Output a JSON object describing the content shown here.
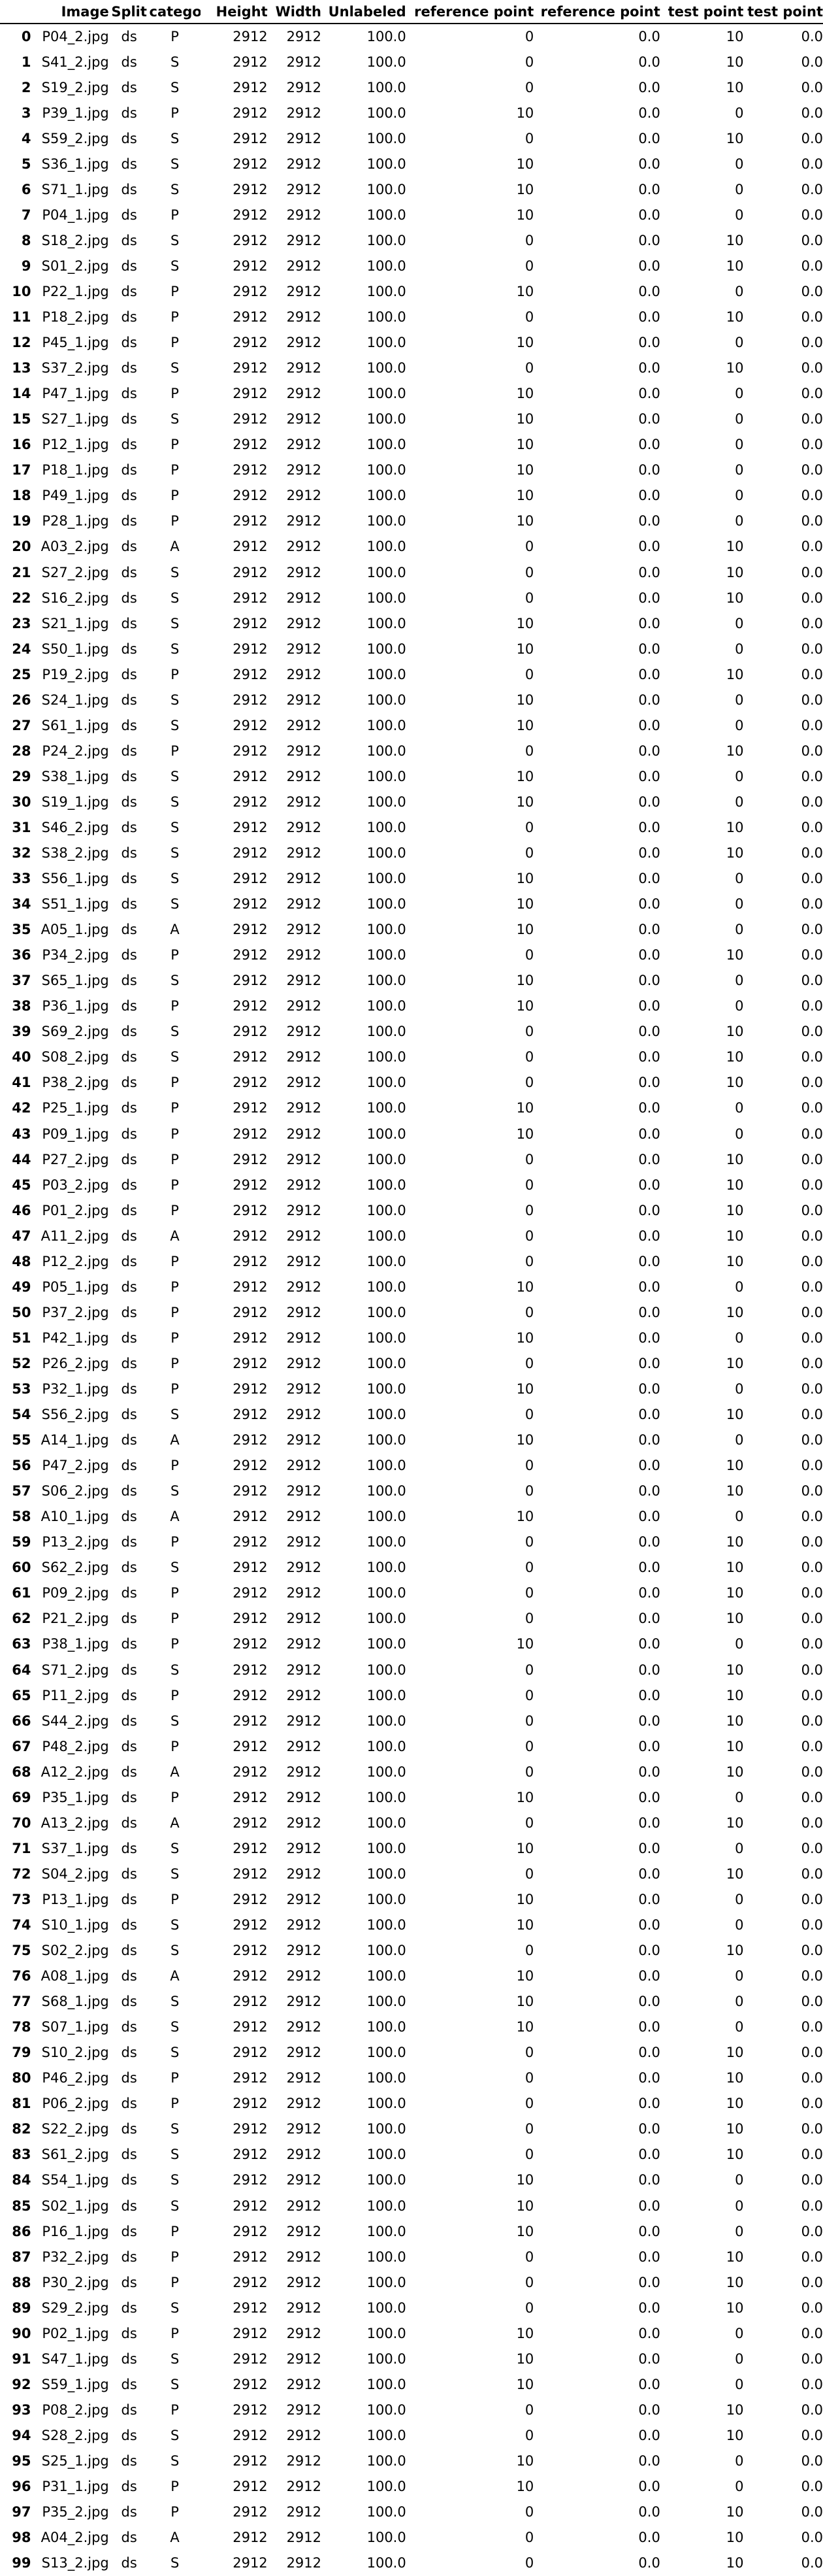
{
  "table": {
    "columns": [
      "",
      "Image",
      "Split",
      "category",
      "Height",
      "Width",
      "Unlabeled",
      "reference point",
      "reference point",
      "test point",
      "test point"
    ],
    "rows": [
      [
        "0",
        "P04_2.jpg",
        "ds",
        "P",
        "2912",
        "2912",
        "100.0",
        "0",
        "0.0",
        "10",
        "0.0"
      ],
      [
        "1",
        "S41_2.jpg",
        "ds",
        "S",
        "2912",
        "2912",
        "100.0",
        "0",
        "0.0",
        "10",
        "0.0"
      ],
      [
        "2",
        "S19_2.jpg",
        "ds",
        "S",
        "2912",
        "2912",
        "100.0",
        "0",
        "0.0",
        "10",
        "0.0"
      ],
      [
        "3",
        "P39_1.jpg",
        "ds",
        "P",
        "2912",
        "2912",
        "100.0",
        "10",
        "0.0",
        "0",
        "0.0"
      ],
      [
        "4",
        "S59_2.jpg",
        "ds",
        "S",
        "2912",
        "2912",
        "100.0",
        "0",
        "0.0",
        "10",
        "0.0"
      ],
      [
        "5",
        "S36_1.jpg",
        "ds",
        "S",
        "2912",
        "2912",
        "100.0",
        "10",
        "0.0",
        "0",
        "0.0"
      ],
      [
        "6",
        "S71_1.jpg",
        "ds",
        "S",
        "2912",
        "2912",
        "100.0",
        "10",
        "0.0",
        "0",
        "0.0"
      ],
      [
        "7",
        "P04_1.jpg",
        "ds",
        "P",
        "2912",
        "2912",
        "100.0",
        "10",
        "0.0",
        "0",
        "0.0"
      ],
      [
        "8",
        "S18_2.jpg",
        "ds",
        "S",
        "2912",
        "2912",
        "100.0",
        "0",
        "0.0",
        "10",
        "0.0"
      ],
      [
        "9",
        "S01_2.jpg",
        "ds",
        "S",
        "2912",
        "2912",
        "100.0",
        "0",
        "0.0",
        "10",
        "0.0"
      ],
      [
        "10",
        "P22_1.jpg",
        "ds",
        "P",
        "2912",
        "2912",
        "100.0",
        "10",
        "0.0",
        "0",
        "0.0"
      ],
      [
        "11",
        "P18_2.jpg",
        "ds",
        "P",
        "2912",
        "2912",
        "100.0",
        "0",
        "0.0",
        "10",
        "0.0"
      ],
      [
        "12",
        "P45_1.jpg",
        "ds",
        "P",
        "2912",
        "2912",
        "100.0",
        "10",
        "0.0",
        "0",
        "0.0"
      ],
      [
        "13",
        "S37_2.jpg",
        "ds",
        "S",
        "2912",
        "2912",
        "100.0",
        "0",
        "0.0",
        "10",
        "0.0"
      ],
      [
        "14",
        "P47_1.jpg",
        "ds",
        "P",
        "2912",
        "2912",
        "100.0",
        "10",
        "0.0",
        "0",
        "0.0"
      ],
      [
        "15",
        "S27_1.jpg",
        "ds",
        "S",
        "2912",
        "2912",
        "100.0",
        "10",
        "0.0",
        "0",
        "0.0"
      ],
      [
        "16",
        "P12_1.jpg",
        "ds",
        "P",
        "2912",
        "2912",
        "100.0",
        "10",
        "0.0",
        "0",
        "0.0"
      ],
      [
        "17",
        "P18_1.jpg",
        "ds",
        "P",
        "2912",
        "2912",
        "100.0",
        "10",
        "0.0",
        "0",
        "0.0"
      ],
      [
        "18",
        "P49_1.jpg",
        "ds",
        "P",
        "2912",
        "2912",
        "100.0",
        "10",
        "0.0",
        "0",
        "0.0"
      ],
      [
        "19",
        "P28_1.jpg",
        "ds",
        "P",
        "2912",
        "2912",
        "100.0",
        "10",
        "0.0",
        "0",
        "0.0"
      ],
      [
        "20",
        "A03_2.jpg",
        "ds",
        "A",
        "2912",
        "2912",
        "100.0",
        "0",
        "0.0",
        "10",
        "0.0"
      ],
      [
        "21",
        "S27_2.jpg",
        "ds",
        "S",
        "2912",
        "2912",
        "100.0",
        "0",
        "0.0",
        "10",
        "0.0"
      ],
      [
        "22",
        "S16_2.jpg",
        "ds",
        "S",
        "2912",
        "2912",
        "100.0",
        "0",
        "0.0",
        "10",
        "0.0"
      ],
      [
        "23",
        "S21_1.jpg",
        "ds",
        "S",
        "2912",
        "2912",
        "100.0",
        "10",
        "0.0",
        "0",
        "0.0"
      ],
      [
        "24",
        "S50_1.jpg",
        "ds",
        "S",
        "2912",
        "2912",
        "100.0",
        "10",
        "0.0",
        "0",
        "0.0"
      ],
      [
        "25",
        "P19_2.jpg",
        "ds",
        "P",
        "2912",
        "2912",
        "100.0",
        "0",
        "0.0",
        "10",
        "0.0"
      ],
      [
        "26",
        "S24_1.jpg",
        "ds",
        "S",
        "2912",
        "2912",
        "100.0",
        "10",
        "0.0",
        "0",
        "0.0"
      ],
      [
        "27",
        "S61_1.jpg",
        "ds",
        "S",
        "2912",
        "2912",
        "100.0",
        "10",
        "0.0",
        "0",
        "0.0"
      ],
      [
        "28",
        "P24_2.jpg",
        "ds",
        "P",
        "2912",
        "2912",
        "100.0",
        "0",
        "0.0",
        "10",
        "0.0"
      ],
      [
        "29",
        "S38_1.jpg",
        "ds",
        "S",
        "2912",
        "2912",
        "100.0",
        "10",
        "0.0",
        "0",
        "0.0"
      ],
      [
        "30",
        "S19_1.jpg",
        "ds",
        "S",
        "2912",
        "2912",
        "100.0",
        "10",
        "0.0",
        "0",
        "0.0"
      ],
      [
        "31",
        "S46_2.jpg",
        "ds",
        "S",
        "2912",
        "2912",
        "100.0",
        "0",
        "0.0",
        "10",
        "0.0"
      ],
      [
        "32",
        "S38_2.jpg",
        "ds",
        "S",
        "2912",
        "2912",
        "100.0",
        "0",
        "0.0",
        "10",
        "0.0"
      ],
      [
        "33",
        "S56_1.jpg",
        "ds",
        "S",
        "2912",
        "2912",
        "100.0",
        "10",
        "0.0",
        "0",
        "0.0"
      ],
      [
        "34",
        "S51_1.jpg",
        "ds",
        "S",
        "2912",
        "2912",
        "100.0",
        "10",
        "0.0",
        "0",
        "0.0"
      ],
      [
        "35",
        "A05_1.jpg",
        "ds",
        "A",
        "2912",
        "2912",
        "100.0",
        "10",
        "0.0",
        "0",
        "0.0"
      ],
      [
        "36",
        "P34_2.jpg",
        "ds",
        "P",
        "2912",
        "2912",
        "100.0",
        "0",
        "0.0",
        "10",
        "0.0"
      ],
      [
        "37",
        "S65_1.jpg",
        "ds",
        "S",
        "2912",
        "2912",
        "100.0",
        "10",
        "0.0",
        "0",
        "0.0"
      ],
      [
        "38",
        "P36_1.jpg",
        "ds",
        "P",
        "2912",
        "2912",
        "100.0",
        "10",
        "0.0",
        "0",
        "0.0"
      ],
      [
        "39",
        "S69_2.jpg",
        "ds",
        "S",
        "2912",
        "2912",
        "100.0",
        "0",
        "0.0",
        "10",
        "0.0"
      ],
      [
        "40",
        "S08_2.jpg",
        "ds",
        "S",
        "2912",
        "2912",
        "100.0",
        "0",
        "0.0",
        "10",
        "0.0"
      ],
      [
        "41",
        "P38_2.jpg",
        "ds",
        "P",
        "2912",
        "2912",
        "100.0",
        "0",
        "0.0",
        "10",
        "0.0"
      ],
      [
        "42",
        "P25_1.jpg",
        "ds",
        "P",
        "2912",
        "2912",
        "100.0",
        "10",
        "0.0",
        "0",
        "0.0"
      ],
      [
        "43",
        "P09_1.jpg",
        "ds",
        "P",
        "2912",
        "2912",
        "100.0",
        "10",
        "0.0",
        "0",
        "0.0"
      ],
      [
        "44",
        "P27_2.jpg",
        "ds",
        "P",
        "2912",
        "2912",
        "100.0",
        "0",
        "0.0",
        "10",
        "0.0"
      ],
      [
        "45",
        "P03_2.jpg",
        "ds",
        "P",
        "2912",
        "2912",
        "100.0",
        "0",
        "0.0",
        "10",
        "0.0"
      ],
      [
        "46",
        "P01_2.jpg",
        "ds",
        "P",
        "2912",
        "2912",
        "100.0",
        "0",
        "0.0",
        "10",
        "0.0"
      ],
      [
        "47",
        "A11_2.jpg",
        "ds",
        "A",
        "2912",
        "2912",
        "100.0",
        "0",
        "0.0",
        "10",
        "0.0"
      ],
      [
        "48",
        "P12_2.jpg",
        "ds",
        "P",
        "2912",
        "2912",
        "100.0",
        "0",
        "0.0",
        "10",
        "0.0"
      ],
      [
        "49",
        "P05_1.jpg",
        "ds",
        "P",
        "2912",
        "2912",
        "100.0",
        "10",
        "0.0",
        "0",
        "0.0"
      ],
      [
        "50",
        "P37_2.jpg",
        "ds",
        "P",
        "2912",
        "2912",
        "100.0",
        "0",
        "0.0",
        "10",
        "0.0"
      ],
      [
        "51",
        "P42_1.jpg",
        "ds",
        "P",
        "2912",
        "2912",
        "100.0",
        "10",
        "0.0",
        "0",
        "0.0"
      ],
      [
        "52",
        "P26_2.jpg",
        "ds",
        "P",
        "2912",
        "2912",
        "100.0",
        "0",
        "0.0",
        "10",
        "0.0"
      ],
      [
        "53",
        "P32_1.jpg",
        "ds",
        "P",
        "2912",
        "2912",
        "100.0",
        "10",
        "0.0",
        "0",
        "0.0"
      ],
      [
        "54",
        "S56_2.jpg",
        "ds",
        "S",
        "2912",
        "2912",
        "100.0",
        "0",
        "0.0",
        "10",
        "0.0"
      ],
      [
        "55",
        "A14_1.jpg",
        "ds",
        "A",
        "2912",
        "2912",
        "100.0",
        "10",
        "0.0",
        "0",
        "0.0"
      ],
      [
        "56",
        "P47_2.jpg",
        "ds",
        "P",
        "2912",
        "2912",
        "100.0",
        "0",
        "0.0",
        "10",
        "0.0"
      ],
      [
        "57",
        "S06_2.jpg",
        "ds",
        "S",
        "2912",
        "2912",
        "100.0",
        "0",
        "0.0",
        "10",
        "0.0"
      ],
      [
        "58",
        "A10_1.jpg",
        "ds",
        "A",
        "2912",
        "2912",
        "100.0",
        "10",
        "0.0",
        "0",
        "0.0"
      ],
      [
        "59",
        "P13_2.jpg",
        "ds",
        "P",
        "2912",
        "2912",
        "100.0",
        "0",
        "0.0",
        "10",
        "0.0"
      ],
      [
        "60",
        "S62_2.jpg",
        "ds",
        "S",
        "2912",
        "2912",
        "100.0",
        "0",
        "0.0",
        "10",
        "0.0"
      ],
      [
        "61",
        "P09_2.jpg",
        "ds",
        "P",
        "2912",
        "2912",
        "100.0",
        "0",
        "0.0",
        "10",
        "0.0"
      ],
      [
        "62",
        "P21_2.jpg",
        "ds",
        "P",
        "2912",
        "2912",
        "100.0",
        "0",
        "0.0",
        "10",
        "0.0"
      ],
      [
        "63",
        "P38_1.jpg",
        "ds",
        "P",
        "2912",
        "2912",
        "100.0",
        "10",
        "0.0",
        "0",
        "0.0"
      ],
      [
        "64",
        "S71_2.jpg",
        "ds",
        "S",
        "2912",
        "2912",
        "100.0",
        "0",
        "0.0",
        "10",
        "0.0"
      ],
      [
        "65",
        "P11_2.jpg",
        "ds",
        "P",
        "2912",
        "2912",
        "100.0",
        "0",
        "0.0",
        "10",
        "0.0"
      ],
      [
        "66",
        "S44_2.jpg",
        "ds",
        "S",
        "2912",
        "2912",
        "100.0",
        "0",
        "0.0",
        "10",
        "0.0"
      ],
      [
        "67",
        "P48_2.jpg",
        "ds",
        "P",
        "2912",
        "2912",
        "100.0",
        "0",
        "0.0",
        "10",
        "0.0"
      ],
      [
        "68",
        "A12_2.jpg",
        "ds",
        "A",
        "2912",
        "2912",
        "100.0",
        "0",
        "0.0",
        "10",
        "0.0"
      ],
      [
        "69",
        "P35_1.jpg",
        "ds",
        "P",
        "2912",
        "2912",
        "100.0",
        "10",
        "0.0",
        "0",
        "0.0"
      ],
      [
        "70",
        "A13_2.jpg",
        "ds",
        "A",
        "2912",
        "2912",
        "100.0",
        "0",
        "0.0",
        "10",
        "0.0"
      ],
      [
        "71",
        "S37_1.jpg",
        "ds",
        "S",
        "2912",
        "2912",
        "100.0",
        "10",
        "0.0",
        "0",
        "0.0"
      ],
      [
        "72",
        "S04_2.jpg",
        "ds",
        "S",
        "2912",
        "2912",
        "100.0",
        "0",
        "0.0",
        "10",
        "0.0"
      ],
      [
        "73",
        "P13_1.jpg",
        "ds",
        "P",
        "2912",
        "2912",
        "100.0",
        "10",
        "0.0",
        "0",
        "0.0"
      ],
      [
        "74",
        "S10_1.jpg",
        "ds",
        "S",
        "2912",
        "2912",
        "100.0",
        "10",
        "0.0",
        "0",
        "0.0"
      ],
      [
        "75",
        "S02_2.jpg",
        "ds",
        "S",
        "2912",
        "2912",
        "100.0",
        "0",
        "0.0",
        "10",
        "0.0"
      ],
      [
        "76",
        "A08_1.jpg",
        "ds",
        "A",
        "2912",
        "2912",
        "100.0",
        "10",
        "0.0",
        "0",
        "0.0"
      ],
      [
        "77",
        "S68_1.jpg",
        "ds",
        "S",
        "2912",
        "2912",
        "100.0",
        "10",
        "0.0",
        "0",
        "0.0"
      ],
      [
        "78",
        "S07_1.jpg",
        "ds",
        "S",
        "2912",
        "2912",
        "100.0",
        "10",
        "0.0",
        "0",
        "0.0"
      ],
      [
        "79",
        "S10_2.jpg",
        "ds",
        "S",
        "2912",
        "2912",
        "100.0",
        "0",
        "0.0",
        "10",
        "0.0"
      ],
      [
        "80",
        "P46_2.jpg",
        "ds",
        "P",
        "2912",
        "2912",
        "100.0",
        "0",
        "0.0",
        "10",
        "0.0"
      ],
      [
        "81",
        "P06_2.jpg",
        "ds",
        "P",
        "2912",
        "2912",
        "100.0",
        "0",
        "0.0",
        "10",
        "0.0"
      ],
      [
        "82",
        "S22_2.jpg",
        "ds",
        "S",
        "2912",
        "2912",
        "100.0",
        "0",
        "0.0",
        "10",
        "0.0"
      ],
      [
        "83",
        "S61_2.jpg",
        "ds",
        "S",
        "2912",
        "2912",
        "100.0",
        "0",
        "0.0",
        "10",
        "0.0"
      ],
      [
        "84",
        "S54_1.jpg",
        "ds",
        "S",
        "2912",
        "2912",
        "100.0",
        "10",
        "0.0",
        "0",
        "0.0"
      ],
      [
        "85",
        "S02_1.jpg",
        "ds",
        "S",
        "2912",
        "2912",
        "100.0",
        "10",
        "0.0",
        "0",
        "0.0"
      ],
      [
        "86",
        "P16_1.jpg",
        "ds",
        "P",
        "2912",
        "2912",
        "100.0",
        "10",
        "0.0",
        "0",
        "0.0"
      ],
      [
        "87",
        "P32_2.jpg",
        "ds",
        "P",
        "2912",
        "2912",
        "100.0",
        "0",
        "0.0",
        "10",
        "0.0"
      ],
      [
        "88",
        "P30_2.jpg",
        "ds",
        "P",
        "2912",
        "2912",
        "100.0",
        "0",
        "0.0",
        "10",
        "0.0"
      ],
      [
        "89",
        "S29_2.jpg",
        "ds",
        "S",
        "2912",
        "2912",
        "100.0",
        "0",
        "0.0",
        "10",
        "0.0"
      ],
      [
        "90",
        "P02_1.jpg",
        "ds",
        "P",
        "2912",
        "2912",
        "100.0",
        "10",
        "0.0",
        "0",
        "0.0"
      ],
      [
        "91",
        "S47_1.jpg",
        "ds",
        "S",
        "2912",
        "2912",
        "100.0",
        "10",
        "0.0",
        "0",
        "0.0"
      ],
      [
        "92",
        "S59_1.jpg",
        "ds",
        "S",
        "2912",
        "2912",
        "100.0",
        "10",
        "0.0",
        "0",
        "0.0"
      ],
      [
        "93",
        "P08_2.jpg",
        "ds",
        "P",
        "2912",
        "2912",
        "100.0",
        "0",
        "0.0",
        "10",
        "0.0"
      ],
      [
        "94",
        "S28_2.jpg",
        "ds",
        "S",
        "2912",
        "2912",
        "100.0",
        "0",
        "0.0",
        "10",
        "0.0"
      ],
      [
        "95",
        "S25_1.jpg",
        "ds",
        "S",
        "2912",
        "2912",
        "100.0",
        "10",
        "0.0",
        "0",
        "0.0"
      ],
      [
        "96",
        "P31_1.jpg",
        "ds",
        "P",
        "2912",
        "2912",
        "100.0",
        "10",
        "0.0",
        "0",
        "0.0"
      ],
      [
        "97",
        "P35_2.jpg",
        "ds",
        "P",
        "2912",
        "2912",
        "100.0",
        "0",
        "0.0",
        "10",
        "0.0"
      ],
      [
        "98",
        "A04_2.jpg",
        "ds",
        "A",
        "2912",
        "2912",
        "100.0",
        "0",
        "0.0",
        "10",
        "0.0"
      ],
      [
        "99",
        "S13_2.jpg",
        "ds",
        "S",
        "2912",
        "2912",
        "100.0",
        "0",
        "0.0",
        "10",
        "0.0"
      ]
    ]
  }
}
